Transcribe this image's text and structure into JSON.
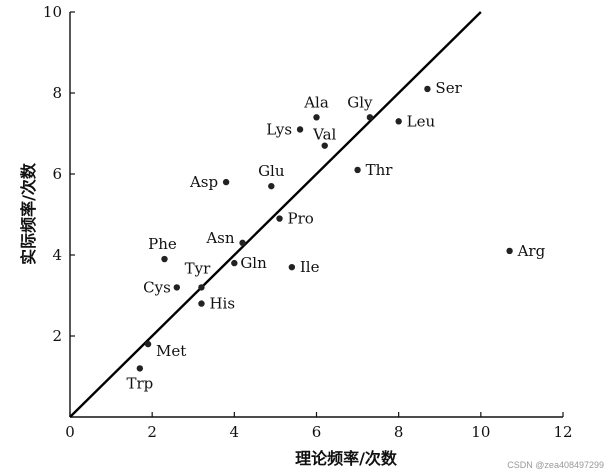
{
  "chart_data": {
    "type": "scatter",
    "title": "",
    "xlabel": "理论频率/次数",
    "ylabel": "实际频率/次数",
    "xlim": [
      0,
      12
    ],
    "ylim": [
      0,
      10
    ],
    "x_ticks": [
      "0",
      "2",
      "4",
      "6",
      "8",
      "10",
      "12"
    ],
    "y_ticks": [
      "0",
      "2",
      "4",
      "6",
      "8",
      "10"
    ],
    "reference_line": {
      "from": [
        0,
        0
      ],
      "to": [
        10,
        10
      ]
    },
    "grid": false,
    "points": [
      {
        "label": "Ser",
        "x": 8.7,
        "y": 8.1
      },
      {
        "label": "Ala",
        "x": 6.0,
        "y": 7.4
      },
      {
        "label": "Gly",
        "x": 7.3,
        "y": 7.4
      },
      {
        "label": "Lys",
        "x": 5.6,
        "y": 7.1
      },
      {
        "label": "Val",
        "x": 6.2,
        "y": 6.7
      },
      {
        "label": "Leu",
        "x": 8.0,
        "y": 7.3
      },
      {
        "label": "Asp",
        "x": 3.8,
        "y": 5.8
      },
      {
        "label": "Glu",
        "x": 4.9,
        "y": 5.7
      },
      {
        "label": "Thr",
        "x": 7.0,
        "y": 6.1
      },
      {
        "label": "Pro",
        "x": 5.1,
        "y": 4.9
      },
      {
        "label": "Asn",
        "x": 4.2,
        "y": 4.3
      },
      {
        "label": "Phe",
        "x": 2.3,
        "y": 3.9
      },
      {
        "label": "Tyr",
        "x": 3.2,
        "y": 3.2
      },
      {
        "label": "Gln",
        "x": 4.0,
        "y": 3.8
      },
      {
        "label": "Ile",
        "x": 5.4,
        "y": 3.7
      },
      {
        "label": "Arg",
        "x": 10.7,
        "y": 4.1
      },
      {
        "label": "Cys",
        "x": 2.6,
        "y": 3.2
      },
      {
        "label": "His",
        "x": 3.2,
        "y": 2.8
      },
      {
        "label": "Met",
        "x": 1.9,
        "y": 1.8
      },
      {
        "label": "Trp",
        "x": 1.7,
        "y": 1.2
      }
    ]
  },
  "watermark": "CSDN @zea408497299"
}
